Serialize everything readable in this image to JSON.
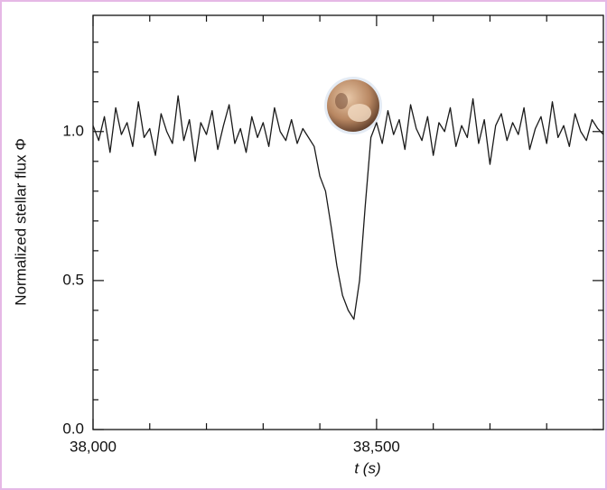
{
  "chart_data": {
    "type": "line",
    "xlabel": "t (s)",
    "ylabel": "Normalized stellar flux Φ",
    "x": [
      38000,
      38010,
      38020,
      38030,
      38040,
      38050,
      38060,
      38070,
      38080,
      38090,
      38100,
      38110,
      38120,
      38130,
      38140,
      38150,
      38160,
      38170,
      38180,
      38190,
      38200,
      38210,
      38220,
      38230,
      38240,
      38250,
      38260,
      38270,
      38280,
      38290,
      38300,
      38310,
      38320,
      38330,
      38340,
      38350,
      38360,
      38370,
      38380,
      38390,
      38400,
      38410,
      38420,
      38430,
      38440,
      38450,
      38460,
      38470,
      38480,
      38490,
      38500,
      38510,
      38520,
      38530,
      38540,
      38550,
      38560,
      38570,
      38580,
      38590,
      38600,
      38610,
      38620,
      38630,
      38640,
      38650,
      38660,
      38670,
      38680,
      38690,
      38700,
      38710,
      38720,
      38730,
      38740,
      38750,
      38760,
      38770,
      38780,
      38790,
      38800,
      38810,
      38820,
      38830,
      38840,
      38850,
      38860,
      38870,
      38880,
      38890,
      38900
    ],
    "values": [
      1.02,
      0.97,
      1.05,
      0.93,
      1.08,
      0.99,
      1.03,
      0.95,
      1.1,
      0.98,
      1.01,
      0.92,
      1.06,
      1.0,
      0.96,
      1.12,
      0.97,
      1.04,
      0.9,
      1.03,
      0.99,
      1.07,
      0.94,
      1.02,
      1.09,
      0.96,
      1.01,
      0.93,
      1.05,
      0.98,
      1.03,
      0.95,
      1.08,
      1.0,
      0.97,
      1.04,
      0.96,
      1.01,
      0.98,
      0.95,
      0.85,
      0.8,
      0.68,
      0.55,
      0.45,
      0.4,
      0.37,
      0.5,
      0.75,
      0.98,
      1.03,
      0.96,
      1.07,
      0.99,
      1.04,
      0.94,
      1.09,
      1.01,
      0.97,
      1.05,
      0.92,
      1.03,
      1.0,
      1.08,
      0.95,
      1.02,
      0.98,
      1.11,
      0.96,
      1.04,
      0.89,
      1.02,
      1.06,
      0.97,
      1.03,
      0.99,
      1.08,
      0.94,
      1.01,
      1.05,
      0.96,
      1.1,
      0.98,
      1.02,
      0.95,
      1.06,
      1.0,
      0.97,
      1.04,
      1.01,
      0.99
    ],
    "color": "#1a1a1a",
    "xlim": [
      38000,
      38900
    ],
    "ylim": [
      0,
      1.39
    ],
    "xticks": [
      {
        "value": 38000,
        "label": "38,000"
      },
      {
        "value": 38500,
        "label": "38,500"
      }
    ],
    "xminorticks": [
      38100,
      38200,
      38300,
      38400,
      38600,
      38700,
      38800
    ],
    "yticks": [
      {
        "value": 0,
        "label": "0.0"
      },
      {
        "value": 0.5,
        "label": "0.5"
      },
      {
        "value": 1,
        "label": "1.0"
      }
    ],
    "yminorticks": [
      0.1,
      0.2,
      0.3,
      0.4,
      0.6,
      0.7,
      0.8,
      0.9,
      1.1,
      1.2,
      1.3
    ]
  }
}
